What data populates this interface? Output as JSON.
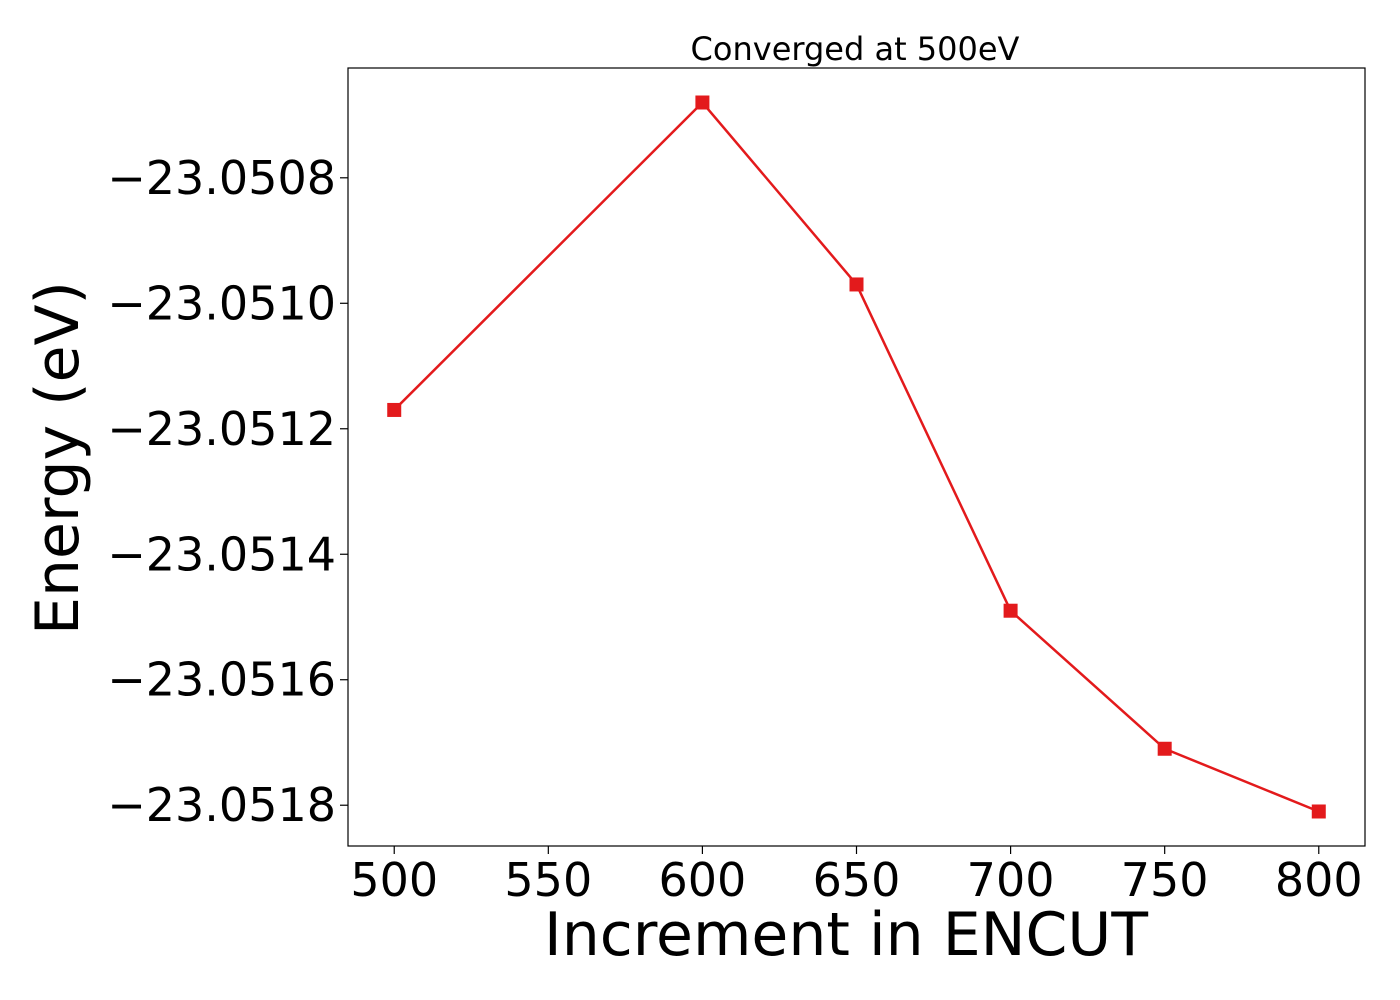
{
  "chart_data": {
    "type": "line",
    "title": "Converged at 500eV",
    "xlabel": "Increment in ENCUT",
    "ylabel": "Energy (eV)",
    "x": [
      500,
      600,
      650,
      700,
      750,
      800
    ],
    "series": [
      {
        "values": [
          -23.05117,
          -23.05068,
          -23.05097,
          -23.05149,
          -23.05171,
          -23.05181
        ],
        "color": "#e31a1c",
        "marker": "square"
      }
    ],
    "xticks": [
      500,
      550,
      600,
      650,
      700,
      750,
      800
    ],
    "xtick_labels": [
      "500",
      "550",
      "600",
      "650",
      "700",
      "750",
      "800"
    ],
    "yticks": [
      -23.0508,
      -23.051,
      -23.0512,
      -23.0514,
      -23.0516,
      -23.0518
    ],
    "ytick_labels": [
      "−23.0508",
      "−23.0510",
      "−23.0512",
      "−23.0514",
      "−23.0516",
      "−23.0518"
    ],
    "xlim": [
      485,
      815
    ],
    "ylim": [
      -23.051865,
      -23.050625
    ],
    "grid": false,
    "legend": false
  }
}
